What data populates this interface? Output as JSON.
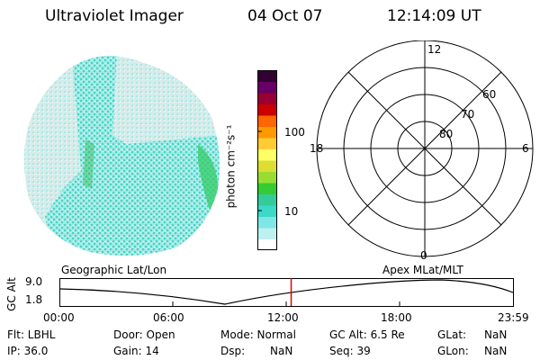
{
  "header": {
    "instrument": "Ultraviolet Imager",
    "date": "04 Oct 07",
    "time": "12:14:09 UT"
  },
  "colorbar": {
    "title": "photon cm⁻²s⁻¹",
    "ticks": [
      "100",
      "10"
    ],
    "colors": [
      "#ffffff",
      "#bff0f0",
      "#7fe6e6",
      "#3cd8c8",
      "#33cc99",
      "#33cc33",
      "#99dd33",
      "#dddd33",
      "#ffff66",
      "#ffcc33",
      "#ff9900",
      "#ff6600",
      "#cc0000",
      "#990033",
      "#660066",
      "#330033"
    ]
  },
  "polar": {
    "mlt_labels": {
      "top": "12",
      "left": "18",
      "right": "6",
      "bottom": "0"
    },
    "mlat_labels": [
      "60",
      "70",
      "80"
    ]
  },
  "timeline": {
    "y_label": "GC Alt",
    "y_ticks": [
      "9.0",
      "1.8"
    ],
    "left_title": "Geographic Lat/Lon",
    "right_title": "Apex  MLat/MLT",
    "x_ticks": [
      "00:00",
      "06:00",
      "12:00",
      "18:00",
      "23:59"
    ],
    "current_time_fraction": 0.51
  },
  "info": {
    "row1": {
      "flt": "Flt: LBHL",
      "door": "Door: Open",
      "mode": "Mode: Normal",
      "gcalt": "GC Alt: 6.5 Re",
      "glat_label": "GLat:",
      "glat_value": "NaN"
    },
    "row2": {
      "ip": "IP: 36.0",
      "gain": "Gain: 14",
      "dsp_label": "Dsp:",
      "dsp_value": "NaN",
      "seq": "Seq: 39",
      "glon_label": "GLon:",
      "glon_value": "NaN"
    }
  },
  "colors": {
    "cyan_low": "#a8ecec",
    "cyan_mid": "#40d8c0",
    "green": "#33cc33",
    "marker": "#e00000"
  }
}
